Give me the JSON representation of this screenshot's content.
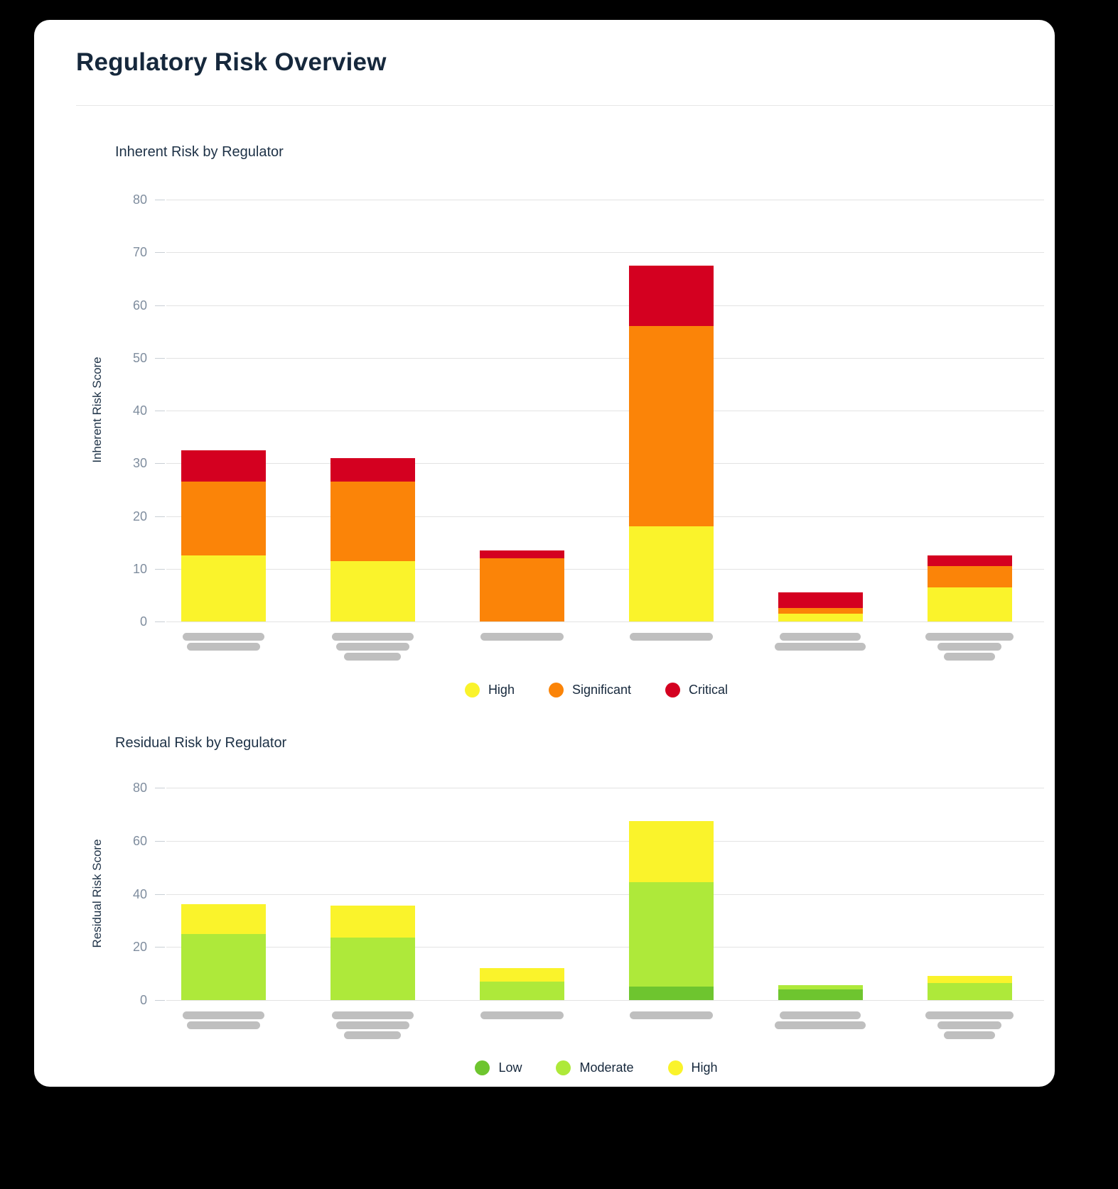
{
  "page": {
    "title": "Regulatory Risk Overview",
    "background_color": "#000000",
    "card_color": "#ffffff",
    "title_color": "#16283c"
  },
  "colors": {
    "high_yellow": "#FAF32B",
    "significant_orange": "#FB8408",
    "critical_red": "#D40020",
    "low_green": "#6EC52F",
    "moderate_green": "#AEE93A",
    "redacted_label_gray": "#BFBFBF",
    "gridline_gray": "#E3E3E3",
    "tick_label_gray": "#7F8D9E"
  },
  "chart_data": [
    {
      "type": "bar",
      "stacked": true,
      "title": "Inherent Risk by Regulator",
      "xlabel": "",
      "ylabel": "Inherent Risk Score",
      "ylim": [
        0,
        80
      ],
      "y_ticks": [
        0,
        10,
        20,
        30,
        40,
        50,
        60,
        70,
        80
      ],
      "grid": true,
      "legend_position": "bottom",
      "categories": [
        "",
        "",
        "",
        "",
        "",
        ""
      ],
      "x_tick_style": "redacted-gray-bars",
      "x_tick_redaction_lines": [
        2,
        3,
        1,
        1,
        2,
        3
      ],
      "series": [
        {
          "name": "High",
          "color": "#FAF32B",
          "values": [
            12.5,
            11.5,
            0,
            18,
            1.5,
            6.5
          ]
        },
        {
          "name": "Significant",
          "color": "#FB8408",
          "values": [
            14,
            15,
            12,
            38,
            1,
            4
          ]
        },
        {
          "name": "Critical",
          "color": "#D40020",
          "values": [
            6,
            4.5,
            1.5,
            11.5,
            3,
            2
          ]
        }
      ],
      "stack_totals": [
        32.5,
        31,
        13.5,
        67.5,
        5.5,
        12.5
      ]
    },
    {
      "type": "bar",
      "stacked": true,
      "title": "Residual Risk by Regulator",
      "xlabel": "",
      "ylabel": "Residual Risk Score",
      "ylim": [
        0,
        80
      ],
      "y_ticks": [
        0,
        20,
        40,
        60,
        80
      ],
      "grid": true,
      "legend_position": "bottom",
      "categories": [
        "",
        "",
        "",
        "",
        "",
        ""
      ],
      "x_tick_style": "redacted-gray-bars",
      "x_tick_redaction_lines": [
        2,
        3,
        1,
        1,
        2,
        3
      ],
      "series": [
        {
          "name": "Low",
          "color": "#6EC52F",
          "values": [
            0,
            0,
            0,
            5,
            4,
            0
          ]
        },
        {
          "name": "Moderate",
          "color": "#AEE93A",
          "values": [
            25,
            23.5,
            7,
            39.5,
            1.5,
            6.5
          ]
        },
        {
          "name": "High",
          "color": "#FAF32B",
          "values": [
            11,
            12,
            5,
            23,
            0,
            2.5
          ]
        }
      ],
      "stack_totals": [
        36,
        35.5,
        12,
        67.5,
        5.5,
        9
      ]
    }
  ]
}
